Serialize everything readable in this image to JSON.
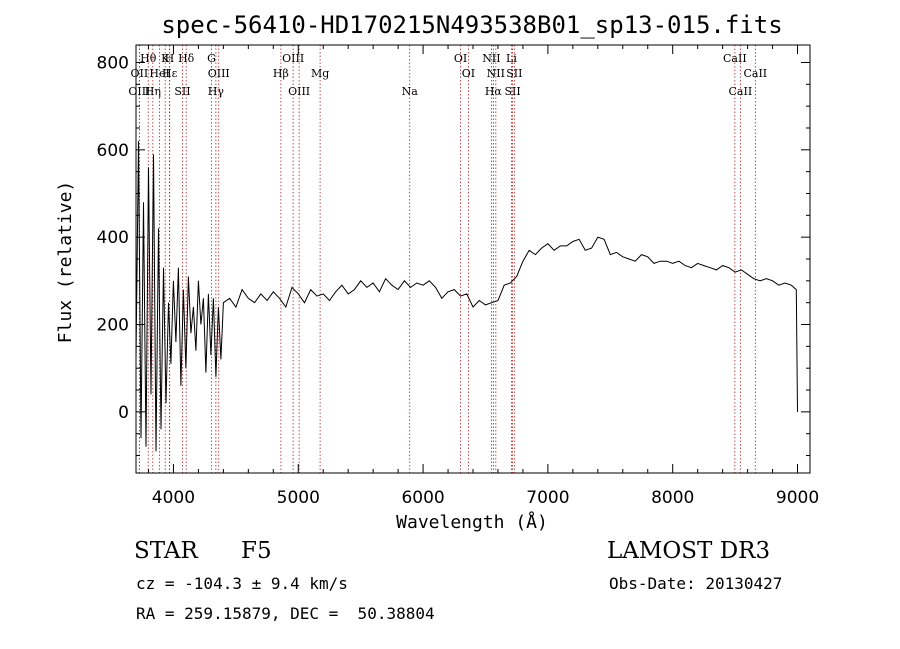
{
  "chart_data": {
    "type": "line",
    "title": "spec-56410-HD170215N493538B01_sp13-015.fits",
    "xlabel": "Wavelength (Å)",
    "ylabel": "Flux (relative)",
    "xlim": [
      3700,
      9100
    ],
    "ylim": [
      -140,
      840
    ],
    "xticks": [
      4000,
      5000,
      6000,
      7000,
      8000,
      9000
    ],
    "yticks": [
      0,
      200,
      400,
      600,
      800
    ],
    "series": [
      {
        "name": "flux",
        "x": [
          3700,
          3720,
          3740,
          3760,
          3780,
          3800,
          3820,
          3840,
          3860,
          3880,
          3900,
          3920,
          3940,
          3960,
          3980,
          4000,
          4020,
          4040,
          4060,
          4080,
          4100,
          4120,
          4140,
          4160,
          4180,
          4200,
          4220,
          4240,
          4260,
          4280,
          4300,
          4320,
          4340,
          4360,
          4380,
          4400,
          4450,
          4500,
          4550,
          4600,
          4650,
          4700,
          4750,
          4800,
          4850,
          4900,
          4950,
          5000,
          5050,
          5100,
          5150,
          5200,
          5250,
          5300,
          5350,
          5400,
          5450,
          5500,
          5550,
          5600,
          5650,
          5700,
          5750,
          5800,
          5850,
          5900,
          5950,
          6000,
          6050,
          6100,
          6150,
          6200,
          6250,
          6300,
          6350,
          6400,
          6450,
          6500,
          6550,
          6600,
          6650,
          6700,
          6750,
          6800,
          6850,
          6900,
          6950,
          7000,
          7050,
          7100,
          7150,
          7200,
          7250,
          7300,
          7350,
          7400,
          7450,
          7500,
          7550,
          7600,
          7650,
          7700,
          7750,
          7800,
          7850,
          7900,
          7950,
          8000,
          8050,
          8100,
          8150,
          8200,
          8250,
          8300,
          8350,
          8400,
          8450,
          8500,
          8550,
          8600,
          8650,
          8700,
          8750,
          8800,
          8850,
          8900,
          8950,
          8990,
          9000
        ],
        "y": [
          120,
          620,
          -60,
          480,
          -80,
          560,
          40,
          590,
          -90,
          420,
          -40,
          330,
          20,
          250,
          110,
          300,
          160,
          330,
          60,
          280,
          100,
          310,
          180,
          240,
          140,
          300,
          200,
          260,
          90,
          270,
          130,
          260,
          80,
          240,
          120,
          250,
          260,
          240,
          280,
          260,
          250,
          270,
          255,
          275,
          260,
          240,
          285,
          270,
          250,
          280,
          265,
          270,
          255,
          275,
          290,
          270,
          280,
          300,
          285,
          295,
          275,
          305,
          290,
          280,
          300,
          285,
          295,
          290,
          300,
          285,
          260,
          275,
          280,
          265,
          270,
          240,
          255,
          245,
          250,
          255,
          290,
          295,
          310,
          345,
          370,
          360,
          375,
          385,
          370,
          380,
          380,
          390,
          395,
          370,
          375,
          400,
          395,
          360,
          365,
          355,
          350,
          345,
          360,
          355,
          340,
          345,
          345,
          340,
          345,
          335,
          330,
          340,
          335,
          330,
          325,
          335,
          330,
          320,
          325,
          315,
          305,
          300,
          305,
          300,
          290,
          295,
          290,
          280,
          0
        ]
      }
    ],
    "spectral_lines": [
      {
        "name": "Hθ",
        "wavelength": 3798
      },
      {
        "name": "OII",
        "wavelength": 3727
      },
      {
        "name": "OIII",
        "wavelength": 3727
      },
      {
        "name": "K",
        "wavelength": 3934
      },
      {
        "name": "Hε",
        "wavelength": 3970
      },
      {
        "name": "Hη",
        "wavelength": 3835
      },
      {
        "name": "H",
        "wavelength": 3968
      },
      {
        "name": "HeI",
        "wavelength": 3889
      },
      {
        "name": "SII",
        "wavelength": 4072
      },
      {
        "name": "Hδ",
        "wavelength": 4102
      },
      {
        "name": "OIII",
        "wavelength": 4363
      },
      {
        "name": "Hγ",
        "wavelength": 4340
      },
      {
        "name": "G",
        "wavelength": 4305
      },
      {
        "name": "Hβ",
        "wavelength": 4861
      },
      {
        "name": "OIII",
        "wavelength": 5007
      },
      {
        "name": "OIII",
        "wavelength": 4959
      },
      {
        "name": "Mg",
        "wavelength": 5175
      },
      {
        "name": "Na",
        "wavelength": 5893
      },
      {
        "name": "OI",
        "wavelength": 6300
      },
      {
        "name": "OI",
        "wavelength": 6363
      },
      {
        "name": "Hα",
        "wavelength": 6563
      },
      {
        "name": "NII",
        "wavelength": 6548
      },
      {
        "name": "NII",
        "wavelength": 6583
      },
      {
        "name": "SII",
        "wavelength": 6717
      },
      {
        "name": "Li",
        "wavelength": 6708
      },
      {
        "name": "SII",
        "wavelength": 6731
      },
      {
        "name": "CaII",
        "wavelength": 8542
      },
      {
        "name": "CaII",
        "wavelength": 8498
      },
      {
        "name": "CaII",
        "wavelength": 8662
      }
    ],
    "line_color": "#000000",
    "marker_color": "#b22222"
  },
  "footer": {
    "object_class": "STAR",
    "subclass": "F5",
    "survey": "LAMOST DR3",
    "redshift": "cz = -104.3 ± 9.4 km/s",
    "obs_date": "Obs-Date: 20130427",
    "coords": "RA = 259.15879, DEC =  50.38804"
  }
}
